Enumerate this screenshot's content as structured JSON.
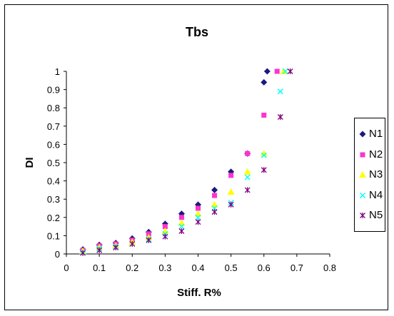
{
  "chart_data": {
    "type": "scatter",
    "title": "Tbs",
    "xlabel": "Stiff. R%",
    "ylabel": "DI",
    "xlim": [
      0,
      0.8
    ],
    "ylim": [
      0,
      1
    ],
    "x_ticks": [
      "0",
      "0.1",
      "0.2",
      "0.3",
      "0.4",
      "0.5",
      "0.6",
      "0.7",
      "0.8"
    ],
    "y_ticks": [
      "0",
      "0.1",
      "0.2",
      "0.3",
      "0.4",
      "0.5",
      "0.6",
      "0.7",
      "0.8",
      "0.9",
      "1"
    ],
    "grid": false,
    "legend_position": "right",
    "series": [
      {
        "name": "N1",
        "color": "#1a1a80",
        "marker": "diamond",
        "points": [
          [
            0.05,
            0.025
          ],
          [
            0.1,
            0.05
          ],
          [
            0.15,
            0.06
          ],
          [
            0.2,
            0.085
          ],
          [
            0.25,
            0.12
          ],
          [
            0.3,
            0.165
          ],
          [
            0.35,
            0.22
          ],
          [
            0.4,
            0.27
          ],
          [
            0.45,
            0.35
          ],
          [
            0.5,
            0.45
          ],
          [
            0.55,
            0.55
          ],
          [
            0.6,
            0.94
          ],
          [
            0.61,
            1.0
          ]
        ]
      },
      {
        "name": "N2",
        "color": "#ff33cc",
        "marker": "square",
        "points": [
          [
            0.05,
            0.02
          ],
          [
            0.1,
            0.045
          ],
          [
            0.15,
            0.055
          ],
          [
            0.2,
            0.075
          ],
          [
            0.25,
            0.11
          ],
          [
            0.3,
            0.15
          ],
          [
            0.35,
            0.2
          ],
          [
            0.4,
            0.25
          ],
          [
            0.45,
            0.32
          ],
          [
            0.5,
            0.43
          ],
          [
            0.55,
            0.55
          ],
          [
            0.6,
            0.76
          ],
          [
            0.64,
            1.0
          ]
        ]
      },
      {
        "name": "N3",
        "color": "#ffff00",
        "marker": "triangle",
        "points": [
          [
            0.05,
            0.015
          ],
          [
            0.1,
            0.035
          ],
          [
            0.15,
            0.045
          ],
          [
            0.2,
            0.065
          ],
          [
            0.25,
            0.09
          ],
          [
            0.3,
            0.125
          ],
          [
            0.35,
            0.17
          ],
          [
            0.4,
            0.22
          ],
          [
            0.45,
            0.27
          ],
          [
            0.5,
            0.34
          ],
          [
            0.55,
            0.45
          ],
          [
            0.6,
            0.55
          ],
          [
            0.66,
            1.0
          ]
        ]
      },
      {
        "name": "N4",
        "color": "#00ffff",
        "marker": "x",
        "points": [
          [
            0.05,
            0.01
          ],
          [
            0.1,
            0.03
          ],
          [
            0.15,
            0.04
          ],
          [
            0.2,
            0.055
          ],
          [
            0.25,
            0.08
          ],
          [
            0.3,
            0.11
          ],
          [
            0.35,
            0.15
          ],
          [
            0.4,
            0.2
          ],
          [
            0.45,
            0.25
          ],
          [
            0.5,
            0.28
          ],
          [
            0.55,
            0.42
          ],
          [
            0.6,
            0.54
          ],
          [
            0.65,
            0.89
          ],
          [
            0.665,
            1.0
          ]
        ]
      },
      {
        "name": "N5",
        "color": "#800080",
        "marker": "star",
        "points": [
          [
            0.05,
            0.005
          ],
          [
            0.1,
            0.02
          ],
          [
            0.15,
            0.035
          ],
          [
            0.2,
            0.055
          ],
          [
            0.25,
            0.075
          ],
          [
            0.3,
            0.095
          ],
          [
            0.35,
            0.125
          ],
          [
            0.4,
            0.175
          ],
          [
            0.45,
            0.23
          ],
          [
            0.5,
            0.27
          ],
          [
            0.55,
            0.35
          ],
          [
            0.6,
            0.46
          ],
          [
            0.65,
            0.75
          ],
          [
            0.68,
            1.0
          ]
        ]
      }
    ]
  }
}
